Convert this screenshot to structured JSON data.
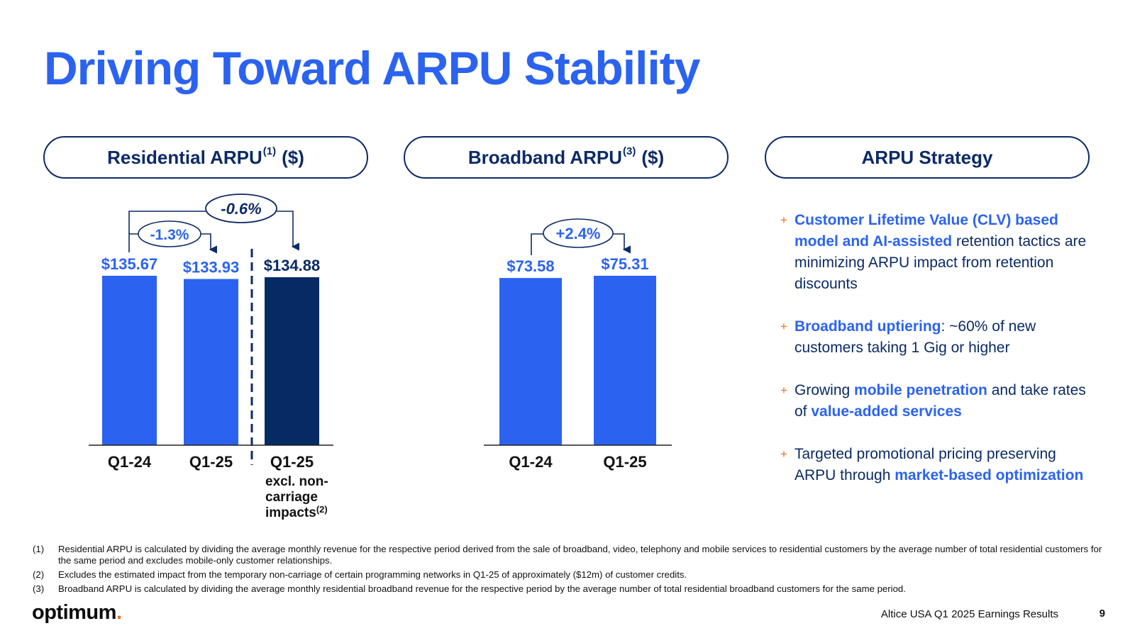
{
  "title": "Driving Toward ARPU Stability",
  "panels": {
    "residential": {
      "label": "Residential ARPU",
      "sup": "(1)",
      "unit": "($)"
    },
    "broadband": {
      "label": "Broadband ARPU",
      "sup": "(3)",
      "unit": "($)"
    },
    "strategy": {
      "label": "ARPU Strategy"
    }
  },
  "chart_data": [
    {
      "type": "bar",
      "categories": [
        "Q1-24",
        "Q1-25",
        "Q1-25"
      ],
      "values": [
        135.67,
        133.93,
        134.88
      ],
      "value_labels": [
        "$135.67",
        "$133.93",
        "$134.88"
      ],
      "category_sublabel": [
        "excl. non-",
        "carriage",
        "impacts"
      ],
      "category_sublabel_sup": "(2)",
      "annotations": [
        {
          "from": "Q1-24",
          "to": "Q1-25",
          "label": "-1.3%"
        },
        {
          "from": "Q1-24",
          "to": "Q1-25 excl. non-carriage impacts",
          "label": "-0.6%"
        }
      ],
      "colors": [
        "#2b63f0",
        "#2b63f0",
        "#062a63"
      ],
      "ylim": [
        0,
        140
      ]
    },
    {
      "type": "bar",
      "categories": [
        "Q1-24",
        "Q1-25"
      ],
      "values": [
        73.58,
        75.31
      ],
      "value_labels": [
        "$73.58",
        "$75.31"
      ],
      "annotations": [
        {
          "from": "Q1-24",
          "to": "Q1-25",
          "label": "+2.4%"
        }
      ],
      "colors": [
        "#2b63f0",
        "#2b63f0"
      ],
      "ylim": [
        0,
        78
      ]
    }
  ],
  "strategy": [
    [
      {
        "t": "Customer Lifetime Value (CLV) based model and AI-assisted",
        "h": true
      },
      {
        "t": " retention tactics are minimizing ARPU impact from retention discounts",
        "h": false
      }
    ],
    [
      {
        "t": "Broadband uptiering",
        "h": true
      },
      {
        "t": ": ~60% of new customers taking 1 Gig or higher",
        "h": false
      }
    ],
    [
      {
        "t": "Growing ",
        "h": false
      },
      {
        "t": "mobile penetration",
        "h": true
      },
      {
        "t": " and take rates of ",
        "h": false
      },
      {
        "t": "value-added services",
        "h": true
      }
    ],
    [
      {
        "t": "Targeted promotional pricing preserving ARPU through ",
        "h": false
      },
      {
        "t": "market-based optimization",
        "h": true
      }
    ]
  ],
  "footnotes": [
    {
      "num": "(1)",
      "text": "Residential ARPU is calculated by dividing the average monthly revenue for the respective period derived from the sale of broadband, video, telephony and mobile services to residential customers by the average number of total residential customers for the same period and excludes mobile-only customer relationships."
    },
    {
      "num": "(2)",
      "text": "Excludes the estimated impact from the temporary non-carriage of certain programming networks in Q1-25 of approximately ($12m) of customer credits."
    },
    {
      "num": "(3)",
      "text": "Broadband ARPU is calculated by dividing the average monthly residential broadband revenue for the respective period by the average number of total residential broadband customers for the same period."
    }
  ],
  "footer": {
    "logo": "optimum",
    "logo_dot": ".",
    "caption": "Altice USA Q1 2025 Earnings Results",
    "page": "9"
  }
}
